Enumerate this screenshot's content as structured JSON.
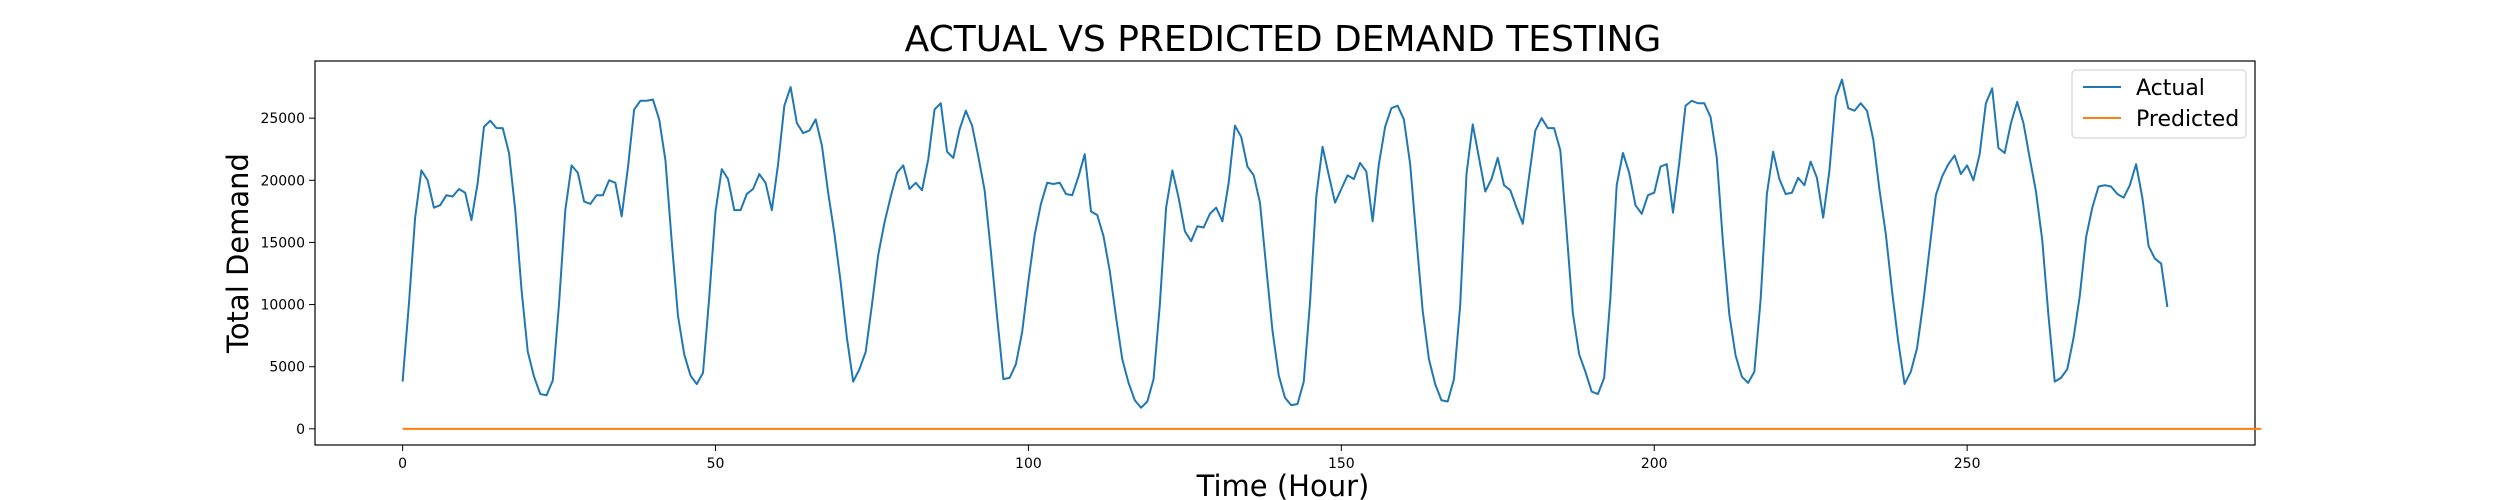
{
  "chart_data": {
    "type": "line",
    "title": "ACTUAL VS PREDICTED DEMAND TESTING",
    "xlabel": "Time (Hour)",
    "ylabel": "Total Demand",
    "xlim": [
      -14,
      296
    ],
    "ylim": [
      -1300,
      29600
    ],
    "xticks": [
      0,
      50,
      100,
      150,
      200,
      250
    ],
    "yticks": [
      0,
      5000,
      10000,
      15000,
      20000,
      25000
    ],
    "grid": false,
    "legend_position": "top-right",
    "colors": {
      "actual": "#1f77b4",
      "predicted": "#ff7f0e"
    },
    "series": [
      {
        "name": "Actual",
        "values": [
          3800,
          10000,
          17000,
          20800,
          20000,
          17800,
          18000,
          18800,
          18700,
          19300,
          19000,
          16800,
          19800,
          24300,
          24800,
          24200,
          24200,
          22200,
          17600,
          11200,
          6200,
          4200,
          2800,
          2700,
          3900,
          10100,
          17600,
          21200,
          20600,
          18300,
          18100,
          18800,
          18800,
          20000,
          19800,
          17100,
          21000,
          25700,
          26400,
          26400,
          26500,
          24900,
          21600,
          15100,
          9100,
          6000,
          4300,
          3600,
          4500,
          10600,
          17500,
          20900,
          20100,
          17600,
          17600,
          18900,
          19300,
          20500,
          19800,
          17600,
          21300,
          26000,
          27500,
          24600,
          23800,
          24000,
          24900,
          22800,
          19000,
          15700,
          11800,
          7300,
          3800,
          4800,
          6200,
          10000,
          14000,
          16600,
          18700,
          20600,
          21200,
          19300,
          19800,
          19200,
          21700,
          25700,
          26200,
          22300,
          21800,
          24100,
          25600,
          24400,
          21900,
          19200,
          14300,
          9000,
          4000,
          4100,
          5200,
          7800,
          11900,
          15600,
          18100,
          19800,
          19700,
          19800,
          18900,
          18800,
          20300,
          22100,
          17500,
          17200,
          15500,
          12700,
          9000,
          5600,
          3700,
          2300,
          1700,
          2200,
          4000,
          10000,
          17800,
          20800,
          18600,
          15900,
          15100,
          16300,
          16200,
          17300,
          17800,
          16700,
          19800,
          24400,
          23500,
          21100,
          20400,
          18200,
          13000,
          7900,
          4300,
          2500,
          1900,
          2000,
          3800,
          10200,
          18700,
          22700,
          20400,
          18200,
          19300,
          20400,
          20100,
          21400,
          20700,
          16700,
          21300,
          24300,
          25800,
          26000,
          24900,
          21300,
          15300,
          9500,
          5600,
          3600,
          2300,
          2200,
          4000,
          10000,
          20500,
          24500,
          21800,
          19100,
          20100,
          21800,
          19600,
          19200,
          17800,
          16500,
          20300,
          24000,
          25000,
          24200,
          24200,
          22400,
          15900,
          9300,
          6000,
          4600,
          3000,
          2800,
          4100,
          10600,
          19600,
          22200,
          20600,
          18000,
          17300,
          18800,
          19000,
          21100,
          21300,
          17400,
          21400,
          26000,
          26400,
          26200,
          26200,
          25100,
          21800,
          14900,
          9200,
          5900,
          4200,
          3700,
          4600,
          10400,
          18900,
          22300,
          20100,
          18900,
          19000,
          20200,
          19600,
          21500,
          20200,
          17000,
          20800,
          26700,
          28100,
          25800,
          25600,
          26200,
          25600,
          23300,
          19200,
          15700,
          11100,
          7000,
          3600,
          4600,
          6500,
          10200,
          14500,
          18800,
          20300,
          21300,
          22000,
          20500,
          21200,
          20000,
          22100,
          26200,
          27400,
          22600,
          22200,
          24600,
          26300,
          24600,
          21800,
          19100,
          15200,
          9100,
          3800,
          4100,
          4800,
          7300,
          10700,
          15400,
          17800,
          19500,
          19600,
          19500,
          18900,
          18600,
          19600,
          21300,
          18600,
          14700,
          13700,
          13300,
          9800
        ]
      },
      {
        "name": "Predicted",
        "values": [
          0,
          0,
          0,
          0,
          0,
          0,
          0,
          0,
          0,
          0,
          0,
          0,
          0,
          0,
          0,
          0,
          0,
          0,
          0,
          0,
          0,
          0,
          0,
          0,
          0,
          0,
          0,
          0,
          0,
          0,
          0,
          0,
          0,
          0,
          0,
          0,
          0,
          0,
          0,
          0,
          0,
          0,
          0,
          0,
          0,
          0,
          0,
          0,
          0,
          0,
          0,
          0,
          0,
          0,
          0,
          0,
          0,
          0,
          0,
          0,
          0,
          0,
          0,
          0,
          0,
          0,
          0,
          0,
          0,
          0,
          0,
          0,
          0,
          0,
          0,
          0,
          0,
          0,
          0,
          0,
          0,
          0,
          0,
          0,
          0,
          0,
          0,
          0,
          0,
          0,
          0,
          0,
          0,
          0,
          0,
          0,
          0,
          0,
          0,
          0,
          0,
          0,
          0,
          0,
          0,
          0,
          0,
          0,
          0,
          0,
          0,
          0,
          0,
          0,
          0,
          0,
          0,
          0,
          0,
          0,
          0,
          0,
          0,
          0,
          0,
          0,
          0,
          0,
          0,
          0,
          0,
          0,
          0,
          0,
          0,
          0,
          0,
          0,
          0,
          0,
          0,
          0,
          0,
          0,
          0,
          0,
          0,
          0,
          0,
          0,
          0,
          0,
          0,
          0,
          0,
          0,
          0,
          0,
          0,
          0,
          0,
          0,
          0,
          0,
          0,
          0,
          0,
          0,
          0,
          0,
          0,
          0,
          0,
          0,
          0,
          0,
          0,
          0,
          0,
          0,
          0,
          0,
          0,
          0,
          0,
          0,
          0,
          0,
          0,
          0,
          0,
          0,
          0,
          0,
          0,
          0,
          0,
          0,
          0,
          0,
          0,
          0,
          0,
          0,
          0,
          0,
          0,
          0,
          0,
          0,
          0,
          0,
          0,
          0,
          0,
          0,
          0,
          0,
          0,
          0,
          0,
          0,
          0,
          0,
          0,
          0,
          0,
          0,
          0,
          0,
          0,
          0,
          0,
          0,
          0,
          0,
          0,
          0,
          0,
          0,
          0,
          0,
          0,
          0,
          0,
          0,
          0,
          0,
          0,
          0,
          0,
          0,
          0,
          0,
          0,
          0,
          0,
          0,
          0,
          0,
          0,
          0,
          0,
          0,
          0,
          0,
          0,
          0,
          0,
          0,
          0,
          0,
          0,
          0,
          0,
          0,
          0,
          0,
          0,
          0,
          0,
          0,
          0,
          0,
          0,
          0,
          0,
          0,
          0,
          0,
          0,
          0,
          0,
          0,
          0,
          0,
          0,
          0
        ]
      }
    ]
  }
}
